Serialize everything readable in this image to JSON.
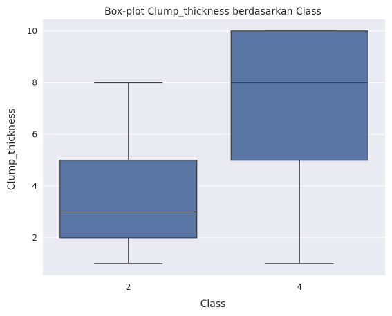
{
  "chart_data": {
    "type": "box",
    "title": "Box-plot Clump_thickness berdasarkan Class",
    "xlabel": "Class",
    "ylabel": "Clump_thickness",
    "categories": [
      "2",
      "4"
    ],
    "boxes": [
      {
        "category": "2",
        "whisker_low": 1,
        "q1": 2,
        "median": 3,
        "q3": 5,
        "whisker_high": 8
      },
      {
        "category": "4",
        "whisker_low": 1,
        "q1": 5,
        "median": 8,
        "q3": 10,
        "whisker_high": 10
      }
    ],
    "yticks": [
      2,
      4,
      6,
      8,
      10
    ],
    "ylim": [
      0.55,
      10.45
    ],
    "grid": true,
    "colors": {
      "background": "#eaeaf2",
      "box_fill": "#5875a4",
      "line": "#3f3f3f",
      "grid": "#ffffff"
    }
  }
}
